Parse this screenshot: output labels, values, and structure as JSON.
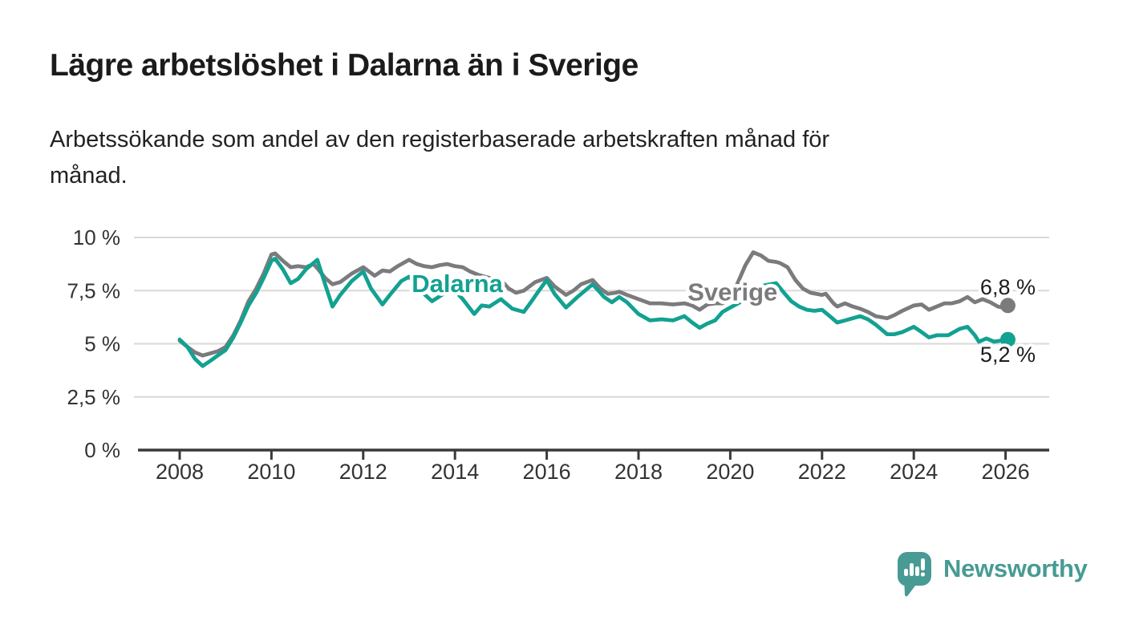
{
  "title": "Lägre arbetslöshet i Dalarna än i Sverige",
  "subtitle_lines": [
    "Arbetssökande som andel av den registerbaserade arbetskraften månad för",
    "månad."
  ],
  "branding": {
    "name": "Newsworthy",
    "color": "#479b94"
  },
  "colors": {
    "dalarna": "#13a191",
    "sverige": "#7b7b7e",
    "grid": "#d9d9d9",
    "axis": "#3a3a3a",
    "tick_text": "#333333",
    "value_text": "#1d1d1d",
    "background": "#ffffff"
  },
  "chart_data": {
    "type": "line",
    "title": "Lägre arbetslöshet i Dalarna än i Sverige",
    "subtitle": "Arbetssökande som andel av den registerbaserade arbetskraften månad för månad.",
    "xlabel": "",
    "ylabel": "",
    "grid": "horizontal",
    "legend_position": "inline-labels",
    "x_range": [
      2008.0,
      2026.1
    ],
    "ylim": [
      0,
      10
    ],
    "y_ticks": [
      {
        "value": 0,
        "label": "0 %"
      },
      {
        "value": 2.5,
        "label": "2,5 %"
      },
      {
        "value": 5,
        "label": "5 %"
      },
      {
        "value": 7.5,
        "label": "7,5 %"
      },
      {
        "value": 10,
        "label": "10 %"
      }
    ],
    "x_ticks": [
      {
        "value": 2008,
        "label": "2008"
      },
      {
        "value": 2010,
        "label": "2010"
      },
      {
        "value": 2012,
        "label": "2012"
      },
      {
        "value": 2014,
        "label": "2014"
      },
      {
        "value": 2016,
        "label": "2016"
      },
      {
        "value": 2018,
        "label": "2018"
      },
      {
        "value": 2020,
        "label": "2020"
      },
      {
        "value": 2022,
        "label": "2022"
      },
      {
        "value": 2024,
        "label": "2024"
      },
      {
        "value": 2026,
        "label": "2026"
      }
    ],
    "series": [
      {
        "name": "Sverige",
        "color": "#7b7b7e",
        "end_value": 6.8,
        "end_label": "6,8 %",
        "end_label_position": "above",
        "points": [
          [
            2008.0,
            5.15
          ],
          [
            2008.17,
            4.85
          ],
          [
            2008.33,
            4.6
          ],
          [
            2008.5,
            4.45
          ],
          [
            2008.67,
            4.55
          ],
          [
            2008.83,
            4.65
          ],
          [
            2009.0,
            4.85
          ],
          [
            2009.17,
            5.4
          ],
          [
            2009.33,
            6.1
          ],
          [
            2009.5,
            7.0
          ],
          [
            2009.67,
            7.6
          ],
          [
            2009.83,
            8.3
          ],
          [
            2010.0,
            9.2
          ],
          [
            2010.08,
            9.25
          ],
          [
            2010.25,
            8.9
          ],
          [
            2010.42,
            8.6
          ],
          [
            2010.58,
            8.65
          ],
          [
            2010.75,
            8.6
          ],
          [
            2010.92,
            8.75
          ],
          [
            2011.0,
            8.55
          ],
          [
            2011.17,
            8.1
          ],
          [
            2011.33,
            7.8
          ],
          [
            2011.5,
            7.9
          ],
          [
            2011.75,
            8.3
          ],
          [
            2012.0,
            8.6
          ],
          [
            2012.25,
            8.2
          ],
          [
            2012.42,
            8.45
          ],
          [
            2012.58,
            8.4
          ],
          [
            2012.75,
            8.65
          ],
          [
            2013.0,
            8.95
          ],
          [
            2013.17,
            8.75
          ],
          [
            2013.33,
            8.65
          ],
          [
            2013.5,
            8.6
          ],
          [
            2013.67,
            8.7
          ],
          [
            2013.83,
            8.75
          ],
          [
            2014.0,
            8.65
          ],
          [
            2014.17,
            8.6
          ],
          [
            2014.33,
            8.4
          ],
          [
            2014.5,
            8.25
          ],
          [
            2014.75,
            8.1
          ],
          [
            2015.0,
            8.0
          ],
          [
            2015.17,
            7.6
          ],
          [
            2015.33,
            7.4
          ],
          [
            2015.5,
            7.5
          ],
          [
            2015.75,
            7.9
          ],
          [
            2016.0,
            8.1
          ],
          [
            2016.17,
            7.7
          ],
          [
            2016.42,
            7.3
          ],
          [
            2016.58,
            7.5
          ],
          [
            2016.75,
            7.8
          ],
          [
            2017.0,
            8.0
          ],
          [
            2017.17,
            7.6
          ],
          [
            2017.33,
            7.35
          ],
          [
            2017.5,
            7.4
          ],
          [
            2017.58,
            7.45
          ],
          [
            2017.75,
            7.3
          ],
          [
            2018.0,
            7.1
          ],
          [
            2018.25,
            6.9
          ],
          [
            2018.5,
            6.9
          ],
          [
            2018.75,
            6.85
          ],
          [
            2019.0,
            6.9
          ],
          [
            2019.17,
            6.8
          ],
          [
            2019.33,
            6.6
          ],
          [
            2019.5,
            6.85
          ],
          [
            2019.67,
            6.9
          ],
          [
            2019.83,
            6.9
          ],
          [
            2020.0,
            7.1
          ],
          [
            2020.17,
            7.9
          ],
          [
            2020.33,
            8.7
          ],
          [
            2020.5,
            9.3
          ],
          [
            2020.67,
            9.15
          ],
          [
            2020.83,
            8.9
          ],
          [
            2021.0,
            8.85
          ],
          [
            2021.08,
            8.8
          ],
          [
            2021.25,
            8.6
          ],
          [
            2021.42,
            8.0
          ],
          [
            2021.58,
            7.6
          ],
          [
            2021.75,
            7.4
          ],
          [
            2022.0,
            7.3
          ],
          [
            2022.08,
            7.35
          ],
          [
            2022.25,
            6.9
          ],
          [
            2022.33,
            6.75
          ],
          [
            2022.5,
            6.9
          ],
          [
            2022.67,
            6.75
          ],
          [
            2022.83,
            6.65
          ],
          [
            2023.0,
            6.5
          ],
          [
            2023.17,
            6.3
          ],
          [
            2023.42,
            6.2
          ],
          [
            2023.58,
            6.35
          ],
          [
            2023.75,
            6.55
          ],
          [
            2024.0,
            6.8
          ],
          [
            2024.17,
            6.85
          ],
          [
            2024.33,
            6.6
          ],
          [
            2024.5,
            6.75
          ],
          [
            2024.67,
            6.9
          ],
          [
            2024.83,
            6.9
          ],
          [
            2025.0,
            7.0
          ],
          [
            2025.17,
            7.2
          ],
          [
            2025.33,
            6.95
          ],
          [
            2025.5,
            7.1
          ],
          [
            2025.67,
            6.95
          ],
          [
            2025.83,
            6.75
          ],
          [
            2025.95,
            6.7
          ],
          [
            2026.05,
            6.8
          ]
        ]
      },
      {
        "name": "Dalarna",
        "color": "#13a191",
        "end_value": 5.2,
        "end_label": "5,2 %",
        "end_label_position": "below",
        "points": [
          [
            2008.0,
            5.2
          ],
          [
            2008.17,
            4.85
          ],
          [
            2008.33,
            4.3
          ],
          [
            2008.5,
            3.95
          ],
          [
            2008.67,
            4.2
          ],
          [
            2008.83,
            4.45
          ],
          [
            2009.0,
            4.7
          ],
          [
            2009.17,
            5.3
          ],
          [
            2009.33,
            6.0
          ],
          [
            2009.5,
            6.8
          ],
          [
            2009.67,
            7.4
          ],
          [
            2009.83,
            8.1
          ],
          [
            2010.0,
            8.9
          ],
          [
            2010.08,
            9.0
          ],
          [
            2010.25,
            8.5
          ],
          [
            2010.42,
            7.85
          ],
          [
            2010.58,
            8.05
          ],
          [
            2010.75,
            8.5
          ],
          [
            2011.0,
            8.95
          ],
          [
            2011.17,
            7.8
          ],
          [
            2011.33,
            6.75
          ],
          [
            2011.5,
            7.3
          ],
          [
            2011.75,
            7.95
          ],
          [
            2012.0,
            8.4
          ],
          [
            2012.17,
            7.6
          ],
          [
            2012.42,
            6.85
          ],
          [
            2012.58,
            7.3
          ],
          [
            2012.83,
            7.95
          ],
          [
            2013.0,
            8.15
          ],
          [
            2013.25,
            7.5
          ],
          [
            2013.5,
            7.0
          ],
          [
            2013.75,
            7.35
          ],
          [
            2014.0,
            7.5
          ],
          [
            2014.17,
            7.1
          ],
          [
            2014.42,
            6.4
          ],
          [
            2014.58,
            6.8
          ],
          [
            2014.75,
            6.75
          ],
          [
            2015.0,
            7.1
          ],
          [
            2015.25,
            6.65
          ],
          [
            2015.5,
            6.5
          ],
          [
            2015.67,
            7.0
          ],
          [
            2015.83,
            7.5
          ],
          [
            2016.0,
            8.0
          ],
          [
            2016.17,
            7.35
          ],
          [
            2016.42,
            6.7
          ],
          [
            2016.67,
            7.2
          ],
          [
            2017.0,
            7.8
          ],
          [
            2017.25,
            7.2
          ],
          [
            2017.42,
            6.95
          ],
          [
            2017.58,
            7.2
          ],
          [
            2017.75,
            6.95
          ],
          [
            2018.0,
            6.4
          ],
          [
            2018.25,
            6.1
          ],
          [
            2018.5,
            6.15
          ],
          [
            2018.75,
            6.1
          ],
          [
            2019.0,
            6.3
          ],
          [
            2019.17,
            6.0
          ],
          [
            2019.33,
            5.75
          ],
          [
            2019.5,
            5.95
          ],
          [
            2019.67,
            6.1
          ],
          [
            2019.83,
            6.5
          ],
          [
            2020.0,
            6.7
          ],
          [
            2020.17,
            6.9
          ],
          [
            2020.33,
            7.1
          ],
          [
            2020.5,
            7.5
          ],
          [
            2020.75,
            7.75
          ],
          [
            2021.0,
            7.85
          ],
          [
            2021.17,
            7.4
          ],
          [
            2021.33,
            7.0
          ],
          [
            2021.5,
            6.75
          ],
          [
            2021.67,
            6.6
          ],
          [
            2021.83,
            6.55
          ],
          [
            2022.0,
            6.6
          ],
          [
            2022.17,
            6.3
          ],
          [
            2022.33,
            6.0
          ],
          [
            2022.5,
            6.1
          ],
          [
            2022.67,
            6.2
          ],
          [
            2022.83,
            6.3
          ],
          [
            2023.0,
            6.15
          ],
          [
            2023.17,
            5.9
          ],
          [
            2023.42,
            5.45
          ],
          [
            2023.58,
            5.45
          ],
          [
            2023.75,
            5.55
          ],
          [
            2024.0,
            5.8
          ],
          [
            2024.17,
            5.55
          ],
          [
            2024.33,
            5.3
          ],
          [
            2024.5,
            5.4
          ],
          [
            2024.75,
            5.4
          ],
          [
            2025.0,
            5.7
          ],
          [
            2025.17,
            5.8
          ],
          [
            2025.33,
            5.4
          ],
          [
            2025.42,
            5.1
          ],
          [
            2025.58,
            5.25
          ],
          [
            2025.75,
            5.1
          ],
          [
            2025.9,
            5.15
          ],
          [
            2026.05,
            5.2
          ]
        ]
      }
    ],
    "annotations": [
      {
        "text": "Dalarna",
        "x": 2014.05,
        "y": 7.85,
        "color": "#13a191"
      },
      {
        "text": "Sverige",
        "x": 2020.05,
        "y": 7.45,
        "color": "#7b7b7e"
      }
    ]
  }
}
